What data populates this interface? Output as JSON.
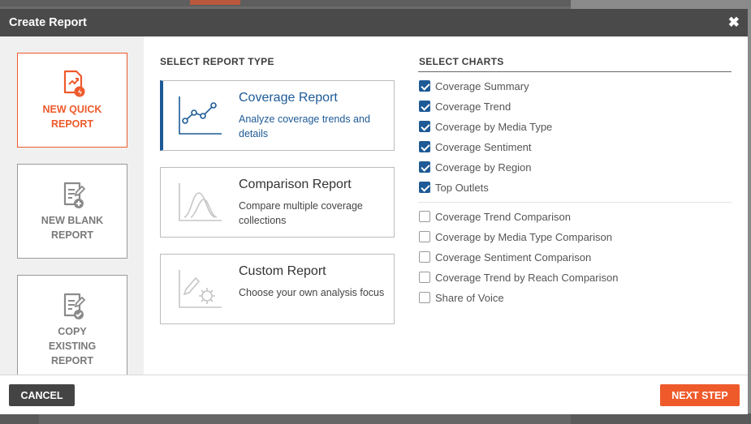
{
  "dialog": {
    "title": "Create Report"
  },
  "sidebar": {
    "items": [
      {
        "line1": "NEW QUICK",
        "line2": "REPORT",
        "line3": "",
        "active": true
      },
      {
        "line1": "NEW BLANK",
        "line2": "REPORT",
        "line3": "",
        "active": false
      },
      {
        "line1": "COPY",
        "line2": "EXISTING",
        "line3": "REPORT",
        "active": false
      }
    ]
  },
  "report_types": {
    "heading": "SELECT REPORT TYPE",
    "items": [
      {
        "title": "Coverage Report",
        "description": "Analyze coverage trends and details",
        "selected": true
      },
      {
        "title": "Comparison Report",
        "description": "Compare multiple coverage collections",
        "selected": false
      },
      {
        "title": "Custom Report",
        "description": "Choose your own analysis focus",
        "selected": false
      }
    ]
  },
  "charts": {
    "heading": "SELECT CHARTS",
    "group1": [
      {
        "label": "Coverage Summary",
        "checked": true
      },
      {
        "label": "Coverage Trend",
        "checked": true
      },
      {
        "label": "Coverage by Media Type",
        "checked": true
      },
      {
        "label": "Coverage Sentiment",
        "checked": true
      },
      {
        "label": "Coverage by Region",
        "checked": true
      },
      {
        "label": "Top Outlets",
        "checked": true
      }
    ],
    "group2": [
      {
        "label": "Coverage Trend Comparison",
        "checked": false
      },
      {
        "label": "Coverage by Media Type Comparison",
        "checked": false
      },
      {
        "label": "Coverage Sentiment Comparison",
        "checked": false
      },
      {
        "label": "Coverage Trend by Reach Comparison",
        "checked": false
      },
      {
        "label": "Share of Voice",
        "checked": false
      }
    ]
  },
  "footer": {
    "cancel_label": "CANCEL",
    "next_label": "NEXT STEP"
  },
  "colors": {
    "accent": "#ef5a2b",
    "primary": "#1d5a96",
    "header": "#4a4a4a"
  }
}
